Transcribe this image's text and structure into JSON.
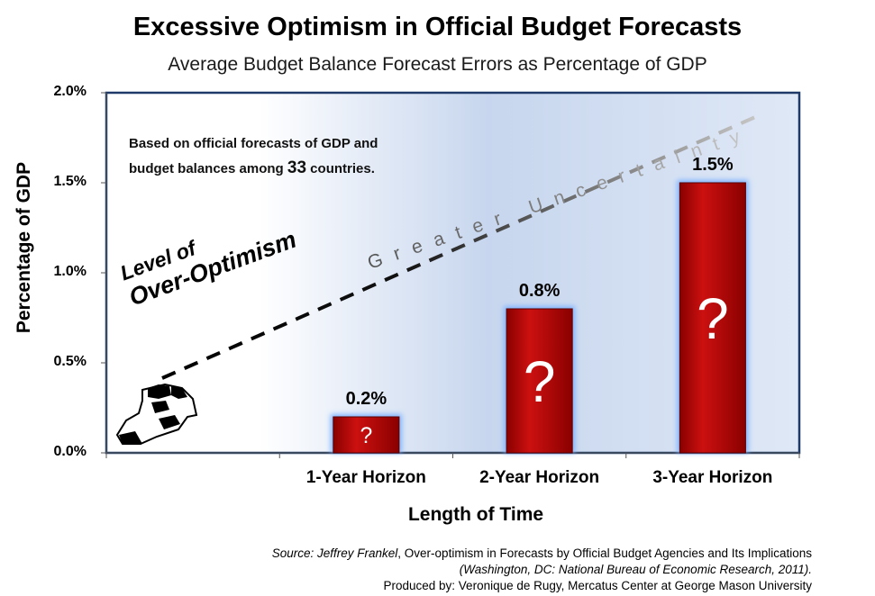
{
  "chart_data": {
    "type": "bar",
    "title": "Excessive Optimism in Official Budget Forecasts",
    "subtitle": "Average Budget Balance Forecast Errors as Percentage of GDP",
    "xlabel": "Length of Time",
    "ylabel": "Percentage of GDP",
    "categories": [
      "",
      "1-Year Horizon",
      "2-Year Horizon",
      "3-Year Horizon"
    ],
    "values": [
      null,
      0.2,
      0.8,
      1.5
    ],
    "value_labels": [
      "",
      "0.2%",
      "0.8%",
      "1.5%"
    ],
    "ylim": [
      0,
      2.0
    ],
    "yticks": [
      "0.0%",
      "0.5%",
      "1.0%",
      "1.5%",
      "2.0%"
    ],
    "bar_marks": [
      "?",
      "?",
      "?"
    ],
    "bar_color": "#b30000",
    "annotations": {
      "note_line1": "Based on official forecasts of GDP and",
      "note_line2_a": "budget balances among ",
      "note_line2_num": "33",
      "note_line2_b": " countries.",
      "optimism_line1": "Level of",
      "optimism_line2": "Over-Optimism",
      "uncertainty": "Greater Uncertainty"
    },
    "grid": false,
    "legend": "none"
  },
  "source": {
    "label": "Source: Jeffrey Frankel",
    "separator": ", ",
    "work": "Over-optimism in Forecasts by Official Budget Agencies and Its Implications",
    "publisher": "(Washington, DC: National Bureau of Economic Research, 2011).",
    "produced_by": "Produced by: Veronique de Rugy, Mercatus Center at George Mason University"
  },
  "icons": {
    "figure": "binoculars-person-icon"
  }
}
